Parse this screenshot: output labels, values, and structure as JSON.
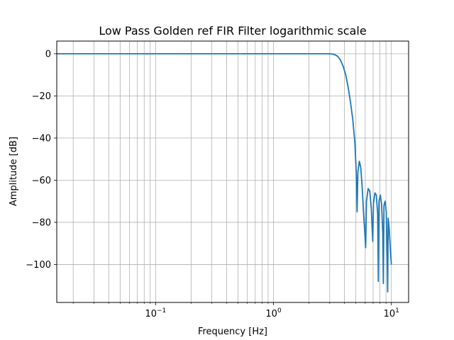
{
  "chart_data": {
    "type": "line",
    "title": "Low Pass Golden ref FIR Filter logarithmic scale",
    "xlabel": "Frequency [Hz]",
    "ylabel": "Amplitude [dB]",
    "xscale": "log",
    "xlim": [
      0.0145,
      14
    ],
    "ylim": [
      -118,
      6
    ],
    "grid": true,
    "grid_minor_x": true,
    "color": "#1f77b4",
    "xticks": [
      {
        "value": 0.1,
        "base": "10",
        "exp": "−1"
      },
      {
        "value": 1,
        "base": "10",
        "exp": "0"
      },
      {
        "value": 10,
        "base": "10",
        "exp": "1"
      }
    ],
    "yticks": [
      {
        "value": 0,
        "label": "0"
      },
      {
        "value": -20,
        "label": "−20"
      },
      {
        "value": -40,
        "label": "−40"
      },
      {
        "value": -60,
        "label": "−60"
      },
      {
        "value": -80,
        "label": "−80"
      },
      {
        "value": -100,
        "label": "−100"
      }
    ],
    "series": [
      {
        "x": [
          0.0145,
          0.05,
          0.2,
          0.5,
          1.0,
          1.5,
          2.0,
          2.5,
          2.9,
          3.1,
          3.3,
          3.5,
          3.7,
          3.9,
          4.1,
          4.3,
          4.5,
          4.7,
          4.9,
          5.05,
          5.12,
          5.2,
          5.35,
          5.5,
          5.65,
          5.8,
          5.95,
          6.05,
          6.15,
          6.35,
          6.55,
          6.75,
          6.95,
          7.05,
          7.25,
          7.45,
          7.65,
          7.75,
          7.85,
          8.05,
          8.25,
          8.45,
          8.55,
          8.65,
          8.85,
          9.05,
          9.2,
          9.3,
          9.4,
          9.55,
          9.7,
          9.85,
          10.0
        ],
        "y": [
          0,
          0,
          0,
          0,
          0,
          0,
          0,
          0,
          0,
          -0.1,
          -0.4,
          -1.2,
          -3,
          -6,
          -10,
          -16,
          -23,
          -31,
          -42,
          -58,
          -75,
          -56,
          -51,
          -54,
          -63,
          -75,
          -85,
          -92,
          -70,
          -64,
          -65,
          -73,
          -89,
          -71,
          -66,
          -67,
          -76,
          -108,
          -70,
          -67,
          -71,
          -85,
          -109,
          -72,
          -70,
          -75,
          -95,
          -113,
          -78,
          -82,
          -88,
          -95,
          -100
        ]
      }
    ]
  }
}
